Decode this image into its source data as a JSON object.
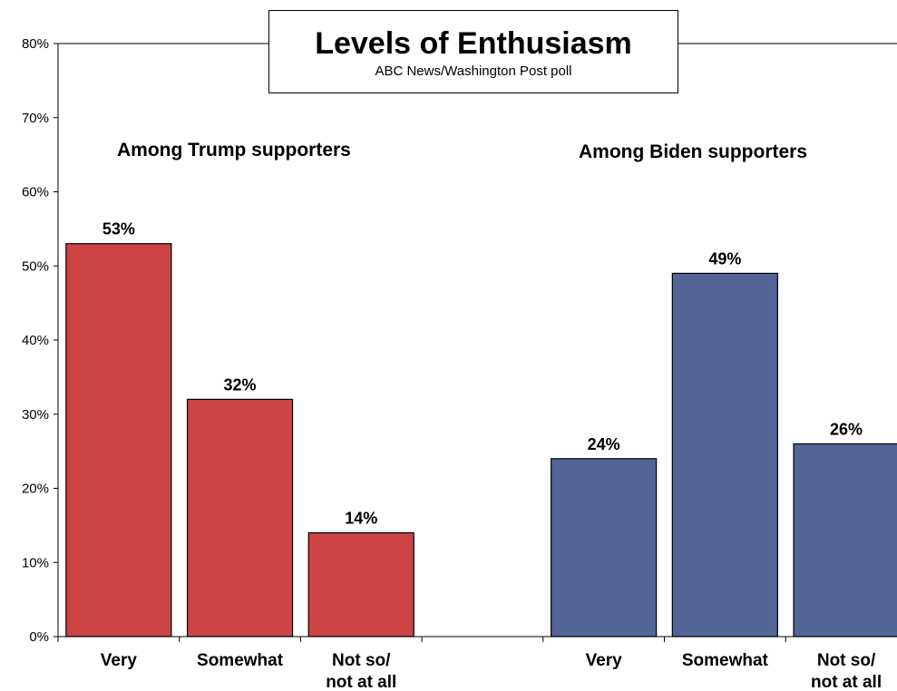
{
  "chart_data": {
    "type": "bar",
    "title": "Levels of Enthusiasm",
    "subtitle": "ABC News/Washington Post poll",
    "ylim": [
      0,
      80
    ],
    "yticks": [
      "0%",
      "10%",
      "20%",
      "30%",
      "40%",
      "50%",
      "60%",
      "70%",
      "80%"
    ],
    "groups": [
      {
        "label": "Among Trump supporters",
        "color": "#cc4444",
        "bars": [
          {
            "category": "Very",
            "value": 53,
            "label": "53%"
          },
          {
            "category": "Somewhat",
            "value": 32,
            "label": "32%"
          },
          {
            "category": "Not so/ not at all",
            "value": 14,
            "label": "14%"
          }
        ]
      },
      {
        "label": "Among Biden supporters",
        "color": "#536597",
        "bars": [
          {
            "category": "Very",
            "value": 24,
            "label": "24%"
          },
          {
            "category": "Somewhat",
            "value": 49,
            "label": "49%"
          },
          {
            "category": "Not so/ not at all",
            "value": 26,
            "label": "26%"
          }
        ]
      }
    ]
  }
}
